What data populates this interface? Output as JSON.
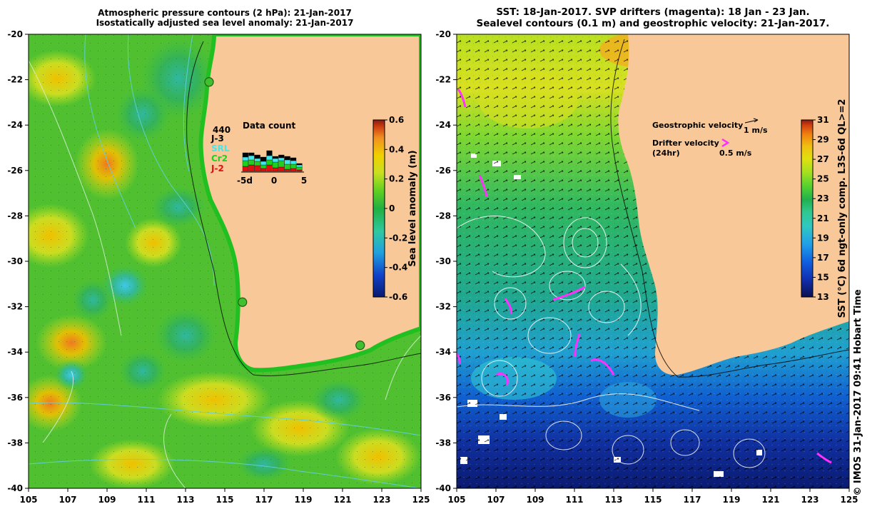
{
  "left_panel": {
    "title_line1": "Atmospheric pressure contours (2 hPa): 21-Jan-2017",
    "title_line2": "Isostatically adjusted sea level anomaly: 21-Jan-2017",
    "colorbar": {
      "label": "Sea level anomaly (m)",
      "ticks": [
        "0.6",
        "0.4",
        "0.2",
        "0",
        "-0.2",
        "-0.4",
        "-0.6"
      ],
      "colors": [
        "#0a1a6e",
        "#1040c8",
        "#20a0e0",
        "#30c8a0",
        "#20b040",
        "#60d020",
        "#c8e020",
        "#f0d000",
        "#f09020",
        "#d04010",
        "#8a1a10"
      ]
    },
    "data_count": {
      "title": "Data count",
      "total": "440",
      "legend": [
        {
          "label": "J-3",
          "color": "#000000"
        },
        {
          "label": "SRL",
          "color": "#40e8f0"
        },
        {
          "label": "Cr2",
          "color": "#20d020"
        },
        {
          "label": "J-2",
          "color": "#e01010"
        }
      ],
      "x_ticks": [
        "-5d",
        "0",
        "5"
      ],
      "bars": [
        {
          "j3": 6,
          "srl": 5,
          "cr2": 8,
          "j2": 7
        },
        {
          "j3": 4,
          "srl": 6,
          "cr2": 7,
          "j2": 9
        },
        {
          "j3": 5,
          "srl": 4,
          "cr2": 6,
          "j2": 8
        },
        {
          "j3": 6,
          "srl": 5,
          "cr2": 5,
          "j2": 4
        },
        {
          "j3": 7,
          "srl": 6,
          "cr2": 7,
          "j2": 9
        },
        {
          "j3": 3,
          "srl": 5,
          "cr2": 8,
          "j2": 5
        },
        {
          "j3": 4,
          "srl": 4,
          "cr2": 9,
          "j2": 6
        },
        {
          "j3": 5,
          "srl": 6,
          "cr2": 7,
          "j2": 3
        },
        {
          "j3": 4,
          "srl": 5,
          "cr2": 6,
          "j2": 4
        },
        {
          "j3": 2,
          "srl": 3,
          "cr2": 4,
          "j2": 2
        }
      ]
    }
  },
  "right_panel": {
    "title_line1": "SST: 18-Jan-2017. SVP drifters (magenta): 18 Jan - 23 Jan.",
    "title_line2": "Sealevel contours (0.1 m) and geostrophic velocity: 21-Jan-2017.",
    "colorbar": {
      "label": "SST (°C) 6d ngt-only comp. L3S-6d QL>=2",
      "ticks": [
        "31",
        "29",
        "27",
        "25",
        "23",
        "21",
        "19",
        "17",
        "15",
        "13"
      ],
      "colors": [
        "#0a1050",
        "#1030b0",
        "#1060e0",
        "#20a0e8",
        "#30c8c0",
        "#30c890",
        "#20b050",
        "#50d030",
        "#a0e020",
        "#e0e010",
        "#f0c010",
        "#f08010",
        "#d04010",
        "#901a10"
      ]
    },
    "legend": {
      "geostrophic": "Geostrophic velocity",
      "geostrophic_scale": "1 m/s",
      "drifter_line1": "Drifter velocity",
      "drifter_line2": "(24hr)",
      "drifter_scale": "0.5 m/s"
    },
    "copyright": "© IMOS 31-Jan-2017 09:41 Hobart Time"
  },
  "axes": {
    "x_ticks": [
      "105",
      "107",
      "109",
      "111",
      "113",
      "115",
      "117",
      "119",
      "121",
      "123",
      "125"
    ],
    "y_ticks": [
      "-20",
      "-22",
      "-24",
      "-26",
      "-28",
      "-30",
      "-32",
      "-34",
      "-36",
      "-38",
      "-40"
    ]
  },
  "map": {
    "lon_range": [
      105,
      125
    ],
    "lat_range": [
      -40,
      -20
    ],
    "land_color": "#f8c898",
    "stations": [
      {
        "lon": 114.2,
        "lat": -22.1
      },
      {
        "lon": 115.9,
        "lat": -31.8
      },
      {
        "lon": 121.9,
        "lat": -33.7
      }
    ]
  }
}
